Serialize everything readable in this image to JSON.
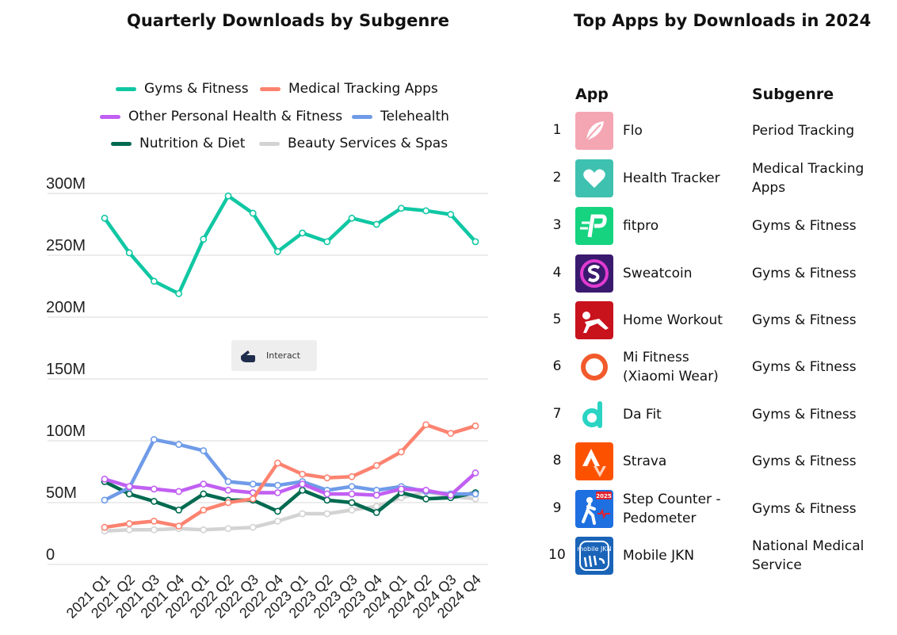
{
  "chart_title": "Quarterly Downloads by Subgenre",
  "table_title": "Top Apps by Downloads in 2024",
  "interact_label": "Interact",
  "chart_data": {
    "type": "line",
    "title": "Quarterly Downloads by Subgenre",
    "xlabel": "",
    "ylabel": "",
    "ylim": [
      0,
      300
    ],
    "yticks": [
      0,
      50,
      100,
      150,
      200,
      250,
      300
    ],
    "ytick_labels": [
      "0",
      "50M",
      "100M",
      "150M",
      "200M",
      "250M",
      "300M"
    ],
    "categories": [
      "2021 Q1",
      "2021 Q2",
      "2021 Q3",
      "2021 Q4",
      "2022 Q1",
      "2022 Q2",
      "2022 Q3",
      "2022 Q4",
      "2023 Q1",
      "2023 Q2",
      "2023 Q3",
      "2023 Q4",
      "2024 Q1",
      "2024 Q2",
      "2024 Q3",
      "2024 Q4"
    ],
    "grid": true,
    "legend": "top",
    "series": [
      {
        "name": "Beauty Services & Spas",
        "color": "#d3d3d3",
        "values": [
          27,
          28,
          28,
          29,
          28,
          29,
          30,
          35,
          41,
          41,
          44,
          47,
          54,
          59,
          55,
          53
        ]
      },
      {
        "name": "Nutrition & Diet",
        "color": "#006a50",
        "values": [
          67,
          57,
          51,
          44,
          57,
          52,
          52,
          43,
          60,
          52,
          50,
          42,
          58,
          53,
          54,
          58
        ]
      },
      {
        "name": "Telehealth",
        "color": "#6f9be8",
        "values": [
          52,
          62,
          101,
          97,
          92,
          67,
          65,
          64,
          67,
          60,
          63,
          60,
          63,
          59,
          57,
          57
        ]
      },
      {
        "name": "Other Personal Health & Fitness",
        "color": "#c15ff2",
        "values": [
          69,
          63,
          61,
          59,
          65,
          60,
          58,
          58,
          65,
          57,
          57,
          56,
          61,
          60,
          56,
          74
        ]
      },
      {
        "name": "Medical Tracking Apps",
        "color": "#fc8370",
        "values": [
          30,
          33,
          35,
          31,
          44,
          50,
          53,
          82,
          73,
          70,
          71,
          80,
          91,
          113,
          106,
          112
        ]
      },
      {
        "name": "Gyms & Fitness",
        "color": "#10c7a3",
        "values": [
          280,
          252,
          229,
          219,
          263,
          298,
          284,
          253,
          268,
          261,
          280,
          275,
          288,
          286,
          283,
          261
        ]
      }
    ]
  },
  "legend": [
    {
      "name": "Gyms & Fitness",
      "color": "#10c7a3"
    },
    {
      "name": "Medical Tracking Apps",
      "color": "#fc8370"
    },
    {
      "name": "Other Personal Health & Fitness",
      "color": "#c15ff2"
    },
    {
      "name": "Telehealth",
      "color": "#6f9be8"
    },
    {
      "name": "Nutrition & Diet",
      "color": "#006a50"
    },
    {
      "name": "Beauty Services & Spas",
      "color": "#d3d3d3"
    }
  ],
  "table": {
    "col_app": "App",
    "col_subgenre": "Subgenre",
    "rows": [
      {
        "rank": "1",
        "app": "Flo",
        "subgenre": "Period Tracking",
        "icon": "flo-icon"
      },
      {
        "rank": "2",
        "app": "Health Tracker",
        "subgenre": "Medical Tracking Apps",
        "icon": "health-tracker-icon"
      },
      {
        "rank": "3",
        "app": "fitpro",
        "subgenre": "Gyms & Fitness",
        "icon": "fitpro-icon"
      },
      {
        "rank": "4",
        "app": "Sweatcoin",
        "subgenre": "Gyms & Fitness",
        "icon": "sweatcoin-icon"
      },
      {
        "rank": "5",
        "app": "Home Workout",
        "subgenre": "Gyms & Fitness",
        "icon": "home-workout-icon"
      },
      {
        "rank": "6",
        "app": "Mi Fitness (Xiaomi Wear)",
        "subgenre": "Gyms & Fitness",
        "icon": "mi-fitness-icon"
      },
      {
        "rank": "7",
        "app": "Da Fit",
        "subgenre": "Gyms & Fitness",
        "icon": "da-fit-icon"
      },
      {
        "rank": "8",
        "app": "Strava",
        "subgenre": "Gyms & Fitness",
        "icon": "strava-icon"
      },
      {
        "rank": "9",
        "app": "Step Counter - Pedometer",
        "subgenre": "Gyms & Fitness",
        "icon": "step-counter-icon"
      },
      {
        "rank": "10",
        "app": "Mobile JKN",
        "subgenre": "National Medical Service",
        "icon": "mobile-jkn-icon"
      }
    ]
  },
  "icon_text": {
    "step_counter_badge": "2025",
    "mobile_jkn_logo": "mobile JKN"
  }
}
